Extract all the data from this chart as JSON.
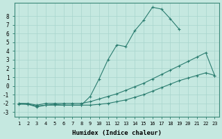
{
  "xlabel": "Humidex (Indice chaleur)",
  "x": [
    1,
    2,
    3,
    4,
    5,
    6,
    7,
    8,
    9,
    10,
    11,
    12,
    13,
    14,
    15,
    16,
    17,
    18,
    19,
    20,
    21,
    22,
    23
  ],
  "line_peak": [
    -2.0,
    -2.1,
    -2.4,
    -2.2,
    -2.1,
    -2.2,
    -2.2,
    -2.2,
    -1.2,
    0.8,
    3.0,
    4.7,
    4.5,
    6.3,
    7.5,
    9.0,
    8.8,
    7.7,
    6.5,
    null,
    null,
    null,
    null
  ],
  "line_diag": [
    -2.0,
    -2.0,
    -2.2,
    -2.0,
    -2.0,
    -2.0,
    -2.0,
    -2.0,
    -1.8,
    -1.5,
    -1.2,
    -0.9,
    -0.5,
    -0.1,
    0.3,
    0.8,
    1.3,
    1.8,
    2.3,
    2.8,
    3.3,
    3.8,
    1.2
  ],
  "line_flat": [
    -2.1,
    -2.1,
    -2.3,
    -2.2,
    -2.2,
    -2.2,
    -2.2,
    -2.2,
    -2.2,
    -2.1,
    -2.0,
    -1.8,
    -1.6,
    -1.3,
    -1.0,
    -0.6,
    -0.2,
    0.2,
    0.6,
    0.9,
    1.2,
    1.5,
    1.2
  ],
  "line_color": "#2a7c6f",
  "bg_color": "#c5e8e0",
  "grid_color": "#a8d4cc",
  "ylim": [
    -3.5,
    9.5
  ],
  "xlim": [
    0.5,
    23.5
  ]
}
